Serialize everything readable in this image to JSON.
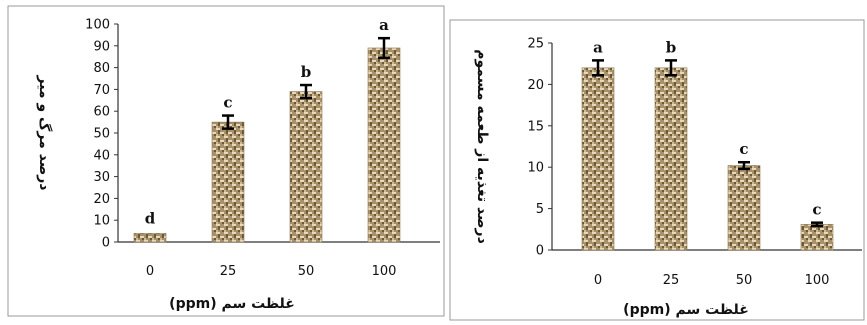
{
  "chart_data": [
    {
      "type": "bar",
      "categories": [
        "0",
        "25",
        "50",
        "100"
      ],
      "values": [
        4,
        55,
        69,
        89
      ],
      "errors": [
        0,
        3,
        3,
        4.5
      ],
      "letters": [
        "d",
        "c",
        "b",
        "a"
      ],
      "ylabel": "درصد مرگ و میر",
      "xlabel": "غلظت سم  (ppm)",
      "ylim": [
        0,
        100
      ],
      "yticks": [
        "0",
        "10",
        "20",
        "30",
        "40",
        "50",
        "60",
        "70",
        "80",
        "90",
        "100"
      ],
      "grid": false,
      "bar_fill": "textured-basketweave",
      "bar_color": "#a89068"
    },
    {
      "type": "bar",
      "categories": [
        "0",
        "25",
        "50",
        "100"
      ],
      "values": [
        22,
        22,
        10.2,
        3.1
      ],
      "errors": [
        0.9,
        0.9,
        0.4,
        0.2
      ],
      "letters": [
        "a",
        "b",
        "c",
        "c"
      ],
      "ylabel": "درصد تغذیه از طعمه مسموم",
      "xlabel": "غلظت سم  (ppm)",
      "ylim": [
        0,
        25
      ],
      "yticks": [
        "0",
        "5",
        "10",
        "15",
        "20",
        "25"
      ],
      "grid": false,
      "bar_fill": "textured-basketweave",
      "bar_color": "#a89068"
    }
  ]
}
